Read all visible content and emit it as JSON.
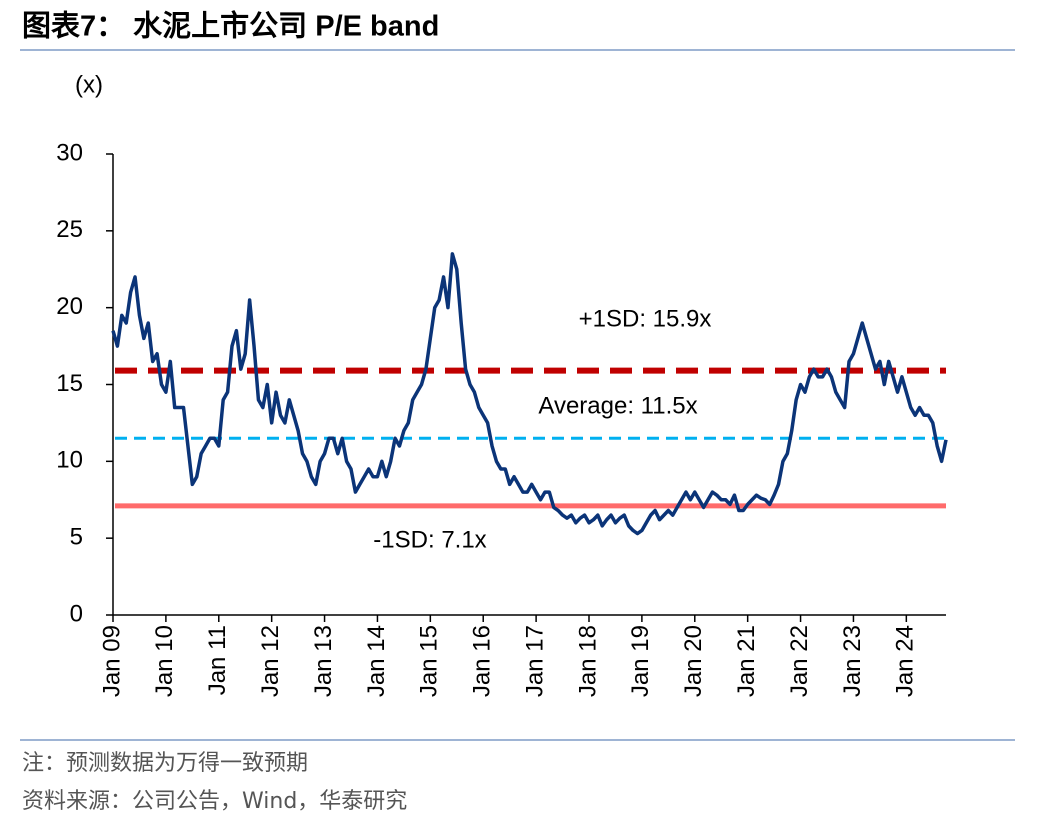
{
  "title": "图表7： 水泥上市公司 P/E band",
  "notes": [
    "注：预测数据为万得一致预期",
    "资料来源：公司公告，Wind，华泰研究"
  ],
  "chart_data": {
    "type": "line",
    "y_axis_label": "(x)",
    "categories": [
      "Jan 09",
      null,
      null,
      null,
      null,
      null,
      null,
      null,
      null,
      null,
      null,
      null,
      "Jan 10",
      null,
      null,
      null,
      null,
      null,
      null,
      null,
      null,
      null,
      null,
      null,
      "Jan 11",
      null,
      null,
      null,
      null,
      null,
      null,
      null,
      null,
      null,
      null,
      null,
      "Jan 12",
      null,
      null,
      null,
      null,
      null,
      null,
      null,
      null,
      null,
      null,
      null,
      "Jan 13",
      null,
      null,
      null,
      null,
      null,
      null,
      null,
      null,
      null,
      null,
      null,
      "Jan 14",
      null,
      null,
      null,
      null,
      null,
      null,
      null,
      null,
      null,
      null,
      null,
      "Jan 15",
      null,
      null,
      null,
      null,
      null,
      null,
      null,
      null,
      null,
      null,
      null,
      "Jan 16",
      null,
      null,
      null,
      null,
      null,
      null,
      null,
      null,
      null,
      null,
      null,
      "Jan 17",
      null,
      null,
      null,
      null,
      null,
      null,
      null,
      null,
      null,
      null,
      null,
      "Jan 18",
      null,
      null,
      null,
      null,
      null,
      null,
      null,
      null,
      null,
      null,
      null,
      "Jan 19",
      null,
      null,
      null,
      null,
      null,
      null,
      null,
      null,
      null,
      null,
      null,
      "Jan 20",
      null,
      null,
      null,
      null,
      null,
      null,
      null,
      null,
      null,
      null,
      null,
      "Jan 21",
      null,
      null,
      null,
      null,
      null,
      null,
      null,
      null,
      null,
      null,
      null,
      "Jan 22",
      null,
      null,
      null,
      null,
      null,
      null,
      null,
      null,
      null,
      null,
      null,
      "Jan 23",
      null,
      null,
      null,
      null,
      null,
      null,
      null,
      null,
      null,
      null,
      null,
      "Jan 24",
      null,
      null,
      null,
      null,
      null,
      null,
      null,
      null,
      null
    ],
    "series": [
      {
        "name": "P/E",
        "color": "#0b3478",
        "values": [
          18.5,
          17.5,
          19.5,
          19,
          21,
          22,
          19.5,
          18,
          19,
          16.5,
          17,
          15,
          14.5,
          16.5,
          13.5,
          13.5,
          13.5,
          11,
          8.5,
          9,
          10.5,
          11,
          11.5,
          11.5,
          11,
          14,
          14.5,
          17.5,
          18.5,
          16,
          17,
          20.5,
          17.5,
          14,
          13.5,
          15,
          12.5,
          14.5,
          13,
          12.5,
          14,
          13,
          12,
          10.5,
          10,
          9,
          8.5,
          10,
          10.5,
          11.5,
          11.5,
          10.5,
          11.5,
          10,
          9.5,
          8,
          8.5,
          9,
          9.5,
          9,
          9,
          10,
          9,
          10,
          11.5,
          11,
          12,
          12.5,
          14,
          14.5,
          15,
          16,
          18,
          20,
          20.5,
          22,
          20,
          23.5,
          22.5,
          19,
          16,
          15,
          14.5,
          13.5,
          13,
          12.5,
          11,
          10,
          9.5,
          9.5,
          8.5,
          9,
          8.5,
          8,
          8,
          8.5,
          8,
          7.5,
          8,
          8,
          7,
          6.8,
          6.5,
          6.3,
          6.5,
          6,
          6.3,
          6.5,
          6,
          6.2,
          6.5,
          5.8,
          6.2,
          6.5,
          6,
          6.3,
          6.5,
          5.8,
          5.5,
          5.3,
          5.5,
          6,
          6.5,
          6.8,
          6.2,
          6.5,
          6.8,
          6.5,
          7,
          7.5,
          8,
          7.5,
          8,
          7.5,
          7,
          7.5,
          8,
          7.8,
          7.5,
          7.5,
          7.2,
          7.8,
          6.8,
          6.8,
          7.2,
          7.5,
          7.8,
          7.6,
          7.5,
          7.2,
          7.8,
          8.5,
          10,
          10.5,
          12,
          14,
          15,
          14.5,
          15.5,
          16,
          15.5,
          15.5,
          16,
          15.5,
          14.5,
          14,
          13.5,
          16.5,
          17,
          18,
          19,
          18,
          17,
          16,
          16.5,
          15,
          16.5,
          15.5,
          14.5,
          15.5,
          14.5,
          13.5,
          13,
          13.5,
          13,
          13,
          12.5,
          11,
          10,
          11.4
        ]
      }
    ],
    "reference_lines": [
      {
        "label": "+1SD: 15.9x",
        "value": 15.9,
        "color": "#c00000",
        "style": "dashed"
      },
      {
        "label": "Average: 11.5x",
        "value": 11.5,
        "color": "#00b0f0",
        "style": "dashed"
      },
      {
        "label": "-1SD: 7.1x",
        "value": 7.1,
        "color": "#ff6b6b",
        "style": "solid"
      }
    ],
    "ylim": [
      0,
      30
    ],
    "yticks": [
      0,
      5,
      10,
      15,
      20,
      25,
      30
    ],
    "grid": false
  }
}
